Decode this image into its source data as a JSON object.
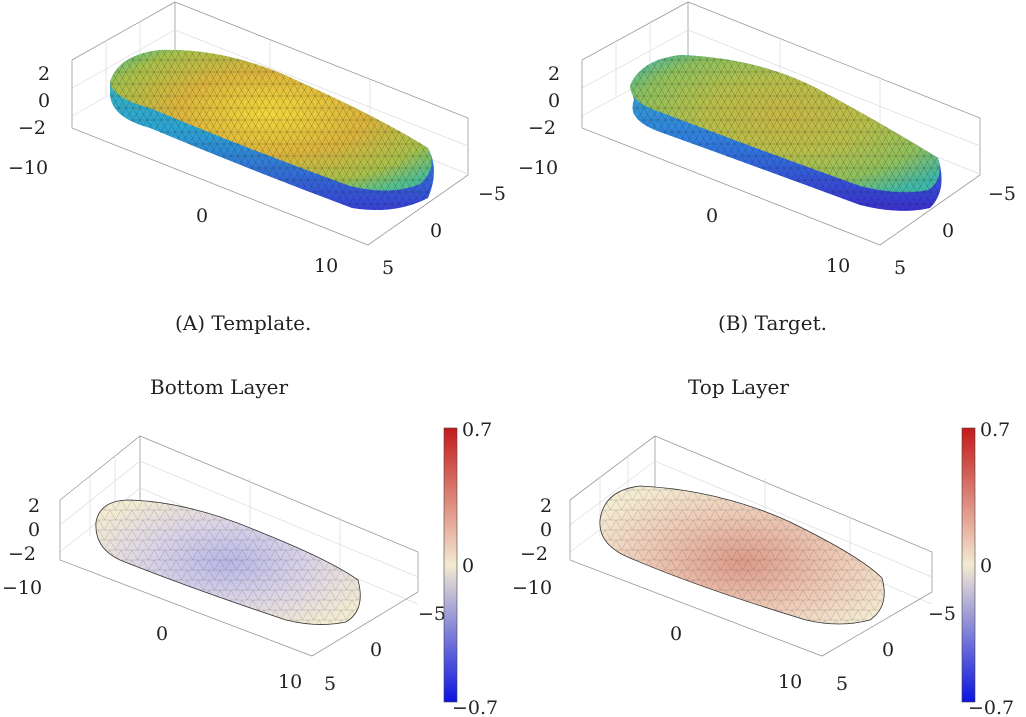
{
  "chart_data": [
    {
      "type": "surface3d",
      "panel": "A",
      "caption": "(A) Template.",
      "title": "",
      "colormap": "parula",
      "x_ticks": [
        "−10",
        "0",
        "10"
      ],
      "y_ticks": [
        "−5",
        "0",
        "5"
      ],
      "z_ticks": [
        "2",
        "0",
        "−2"
      ],
      "xlim": [
        -12,
        12
      ],
      "ylim": [
        -6,
        6
      ],
      "zlim": [
        -3,
        3
      ],
      "grid": true
    },
    {
      "type": "surface3d",
      "panel": "B",
      "caption": "(B) Target.",
      "title": "",
      "colormap": "parula",
      "x_ticks": [
        "−10",
        "0",
        "10"
      ],
      "y_ticks": [
        "−5",
        "0",
        "5"
      ],
      "z_ticks": [
        "2",
        "0",
        "−2"
      ],
      "xlim": [
        -12,
        12
      ],
      "ylim": [
        -6,
        6
      ],
      "zlim": [
        -3,
        3
      ],
      "grid": true
    },
    {
      "type": "surface3d",
      "panel": "C",
      "title": "Bottom Layer",
      "colormap": "blue-white-red",
      "x_ticks": [
        "−10",
        "0",
        "10"
      ],
      "y_ticks": [
        "−5",
        "0",
        "5"
      ],
      "z_ticks": [
        "2",
        "0",
        "−2"
      ],
      "colorbar": {
        "min": -0.7,
        "max": 0.7,
        "ticks": [
          "0.7",
          "0",
          "−0.7"
        ]
      },
      "grid": true
    },
    {
      "type": "surface3d",
      "panel": "D",
      "title": "Top Layer",
      "colormap": "blue-white-red",
      "x_ticks": [
        "−10",
        "0",
        "10"
      ],
      "y_ticks": [
        "−5",
        "0",
        "5"
      ],
      "z_ticks": [
        "2",
        "0",
        "−2"
      ],
      "colorbar": {
        "min": -0.7,
        "max": 0.7,
        "ticks": [
          "0.7",
          "0",
          "−0.7"
        ]
      },
      "grid": true
    }
  ],
  "colors": {
    "parula_low": "#3b3bd6",
    "parula_mid": "#2fb7b0",
    "parula_high": "#e8c23a",
    "bwr_low": "#0a14e0",
    "bwr_mid": "#f3ead2",
    "bwr_high": "#c41a1a"
  }
}
